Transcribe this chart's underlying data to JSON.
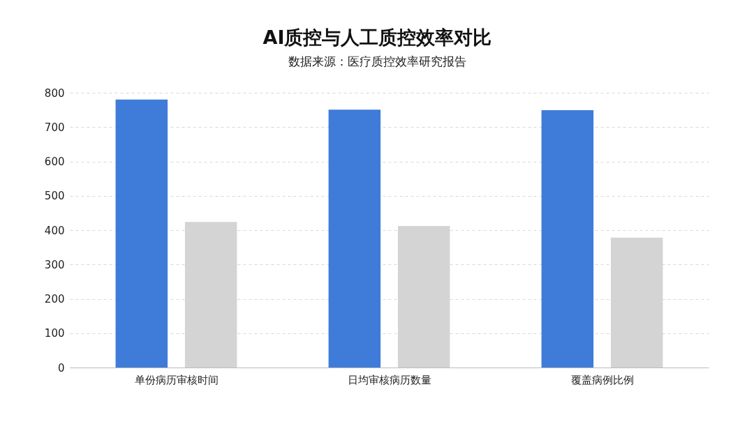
{
  "chart_data": {
    "type": "bar",
    "title": "AI质控与人工质控效率对比",
    "subtitle": "数据来源：医疗质控效率研究报告",
    "categories": [
      "单份病历审核时间",
      "日均审核病历数量",
      "覆盖病例比例"
    ],
    "series": [
      {
        "color": "#3f7bd9",
        "values": [
          780,
          751,
          749
        ]
      },
      {
        "color": "#d4d4d4",
        "values": [
          424,
          412,
          378
        ]
      }
    ],
    "ylim": [
      0,
      800
    ],
    "yticks": [
      0,
      100,
      200,
      300,
      400,
      500,
      600,
      700,
      800
    ],
    "grid": "y"
  }
}
